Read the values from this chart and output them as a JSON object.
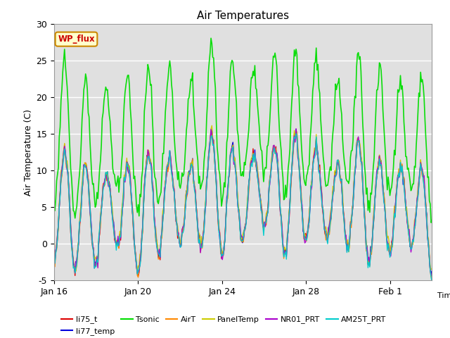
{
  "title": "Air Temperatures",
  "xlabel": "Time",
  "ylabel": "Air Temperature (C)",
  "ylim": [
    -5,
    30
  ],
  "yticks": [
    -5,
    0,
    5,
    10,
    15,
    20,
    25,
    30
  ],
  "xtick_labels": [
    "Jan 16",
    "Jan 20",
    "Jan 24",
    "Jan 28",
    "Feb 1"
  ],
  "xtick_positions": [
    0,
    4,
    8,
    12,
    16
  ],
  "series": {
    "li75_t": {
      "color": "#dd0000",
      "lw": 1.0
    },
    "li77_temp": {
      "color": "#0000dd",
      "lw": 1.0
    },
    "Tsonic": {
      "color": "#00dd00",
      "lw": 1.2
    },
    "AirT": {
      "color": "#ff8800",
      "lw": 1.0
    },
    "PanelTemp": {
      "color": "#cccc00",
      "lw": 1.0
    },
    "NR01_PRT": {
      "color": "#aa00cc",
      "lw": 1.0
    },
    "AM25T_PRT": {
      "color": "#00cccc",
      "lw": 1.0
    }
  },
  "annotation_text": "WP_flux",
  "annotation_color": "#cc0000",
  "annotation_bg": "#ffffcc",
  "annotation_border": "#cc8800",
  "bg_inner": "#e0e0e0",
  "bg_outer": "#ffffff",
  "grid_color": "#ffffff",
  "grid_lw": 1.0,
  "legend_order": [
    "li75_t",
    "li77_temp",
    "Tsonic",
    "AirT",
    "PanelTemp",
    "NR01_PRT",
    "AM25T_PRT"
  ]
}
